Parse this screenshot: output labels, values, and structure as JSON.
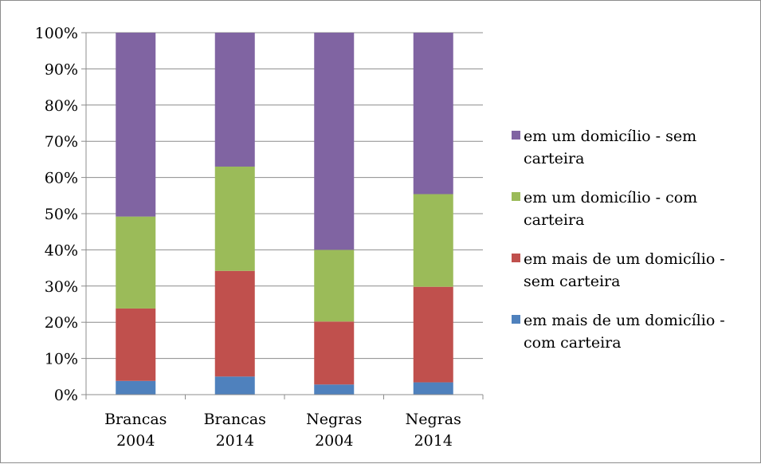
{
  "chart_data": {
    "type": "bar",
    "stacked": true,
    "percent": true,
    "categories": [
      [
        "Brancas",
        "2004"
      ],
      [
        "Brancas",
        "2014"
      ],
      [
        "Negras",
        "2004"
      ],
      [
        "Negras",
        "2014"
      ]
    ],
    "series": [
      {
        "name": "em mais de um domicílio - com carteira",
        "legend_lines": [
          "em mais de um domicílio -",
          "com carteira"
        ],
        "color": "#4f81bd",
        "values": [
          3.8,
          5.0,
          2.8,
          3.4
        ]
      },
      {
        "name": "em mais de um domicílio - sem carteira",
        "legend_lines": [
          "em mais de um domicílio -",
          "sem carteira"
        ],
        "color": "#c0504d",
        "values": [
          20.0,
          29.2,
          17.4,
          26.4
        ]
      },
      {
        "name": "em um domicílio - com carteira",
        "legend_lines": [
          "em um domicílio - com",
          "carteira"
        ],
        "color": "#9bbb59",
        "values": [
          25.4,
          28.8,
          19.8,
          25.6
        ]
      },
      {
        "name": "em um domicílio - sem carteira",
        "legend_lines": [
          "em um domicílio - sem",
          "carteira"
        ],
        "color": "#8064a2",
        "values": [
          50.8,
          37.0,
          60.0,
          44.6
        ]
      }
    ],
    "y_ticks": [
      "0%",
      "10%",
      "20%",
      "30%",
      "40%",
      "50%",
      "60%",
      "70%",
      "80%",
      "90%",
      "100%"
    ],
    "ylim": [
      0,
      100
    ],
    "grid": true,
    "legend_position": "right",
    "legend_order": "reverse"
  }
}
